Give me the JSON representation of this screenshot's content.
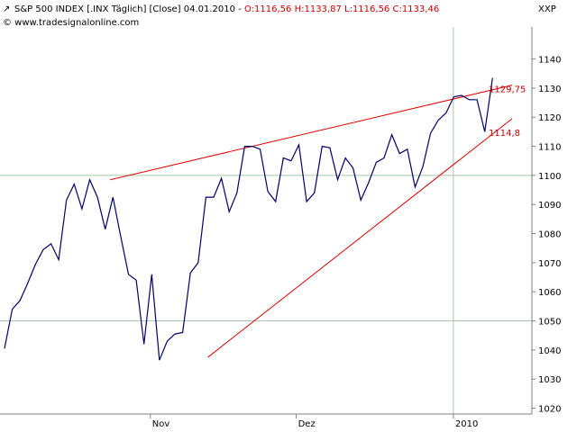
{
  "header": {
    "instrument": "S&P 500 INDEX [.INX  Täglich] [Close] 04.01.2010 - ",
    "ohlc": "O:1116,56 H:1133,87 L:1116,56 C:1133,46",
    "source": "© www.tradesignalonline.com",
    "symbol": "XXP"
  },
  "colors": {
    "price": "#000066",
    "trend": "#dd0000",
    "grid": "#a8c8a8",
    "axis": "#808080",
    "ohlc": "#cc0000"
  },
  "chart_data": {
    "type": "line",
    "ylim": [
      1018,
      1151
    ],
    "y_ticks": [
      1020,
      1030,
      1040,
      1050,
      1060,
      1070,
      1080,
      1090,
      1100,
      1110,
      1120,
      1130,
      1140
    ],
    "x_ticks": [
      {
        "label": "Nov",
        "index": 26
      },
      {
        "label": "Dez",
        "index": 52
      },
      {
        "label": "2010",
        "index": 80
      }
    ],
    "x_count": 94,
    "series": [
      {
        "values": [
          1040.5,
          1054,
          1057,
          1063,
          1069.5,
          1074.5,
          1076.5,
          1071,
          1091.5,
          1097,
          1088.5,
          1098.5,
          1092.5,
          1081.5,
          1092.5,
          1079,
          1066,
          1064,
          1042,
          1066,
          1036.5,
          1043,
          1045.5,
          1046,
          1066.5,
          1070,
          1092.5,
          1092.5,
          1099,
          1087.5,
          1094,
          1110,
          1110,
          1109,
          1094.5,
          1091,
          1106,
          1105,
          1110.5,
          1091,
          1094,
          1110,
          1109.5,
          1098.5,
          1106,
          1102.5,
          1091.5,
          1097.5,
          1104.5,
          1106,
          1114,
          1107.5,
          1109,
          1096,
          1103,
          1114.5,
          1119,
          1121.5,
          1127,
          1127.5,
          1126,
          1126,
          1115,
          1133.5
        ]
      }
    ],
    "series_x": [
      0,
      1,
      2,
      3,
      4,
      5,
      6,
      7,
      8,
      9,
      10,
      11,
      12,
      13,
      14,
      15,
      16,
      17,
      18,
      19,
      20,
      21,
      22,
      23,
      24,
      25,
      26,
      27,
      28,
      29,
      30,
      31,
      32,
      33,
      34,
      35,
      36,
      37,
      38,
      39,
      40,
      41,
      42,
      43,
      44,
      45,
      46,
      47,
      48,
      49,
      50,
      51,
      52,
      53,
      54,
      55,
      56,
      57,
      58,
      59,
      60,
      61,
      62,
      63
    ],
    "trendlines": [
      {
        "x": [
          13,
          84
        ],
        "y": [
          1098.5,
          1131
        ]
      },
      {
        "x": [
          25,
          84
        ],
        "y": [
          1037.5,
          1119.5
        ]
      }
    ],
    "annotations": [
      {
        "text": "1129,75",
        "value": 1129.75
      },
      {
        "text": "1114,8",
        "value": 1114.8
      }
    ]
  }
}
